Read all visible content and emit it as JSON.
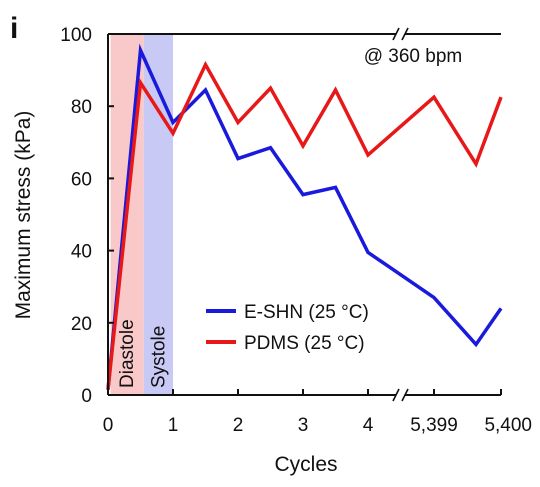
{
  "panel_label": "i",
  "annotation": "@ 360 bpm",
  "chart_data": {
    "type": "line",
    "xlabel": "Cycles",
    "ylabel": "Maximum stress (kPa)",
    "ylim": [
      0,
      100
    ],
    "yticks": [
      0,
      20,
      40,
      60,
      80,
      100
    ],
    "xticks": [
      "0",
      "1",
      "2",
      "3",
      "4",
      "5,399",
      "5,400"
    ],
    "x_axis_break": "between 4 and 5,399",
    "regions": [
      {
        "label": "Diastole",
        "x_start": 0.04,
        "x_end": 0.55,
        "color": "#f9c9c9"
      },
      {
        "label": "Systole",
        "x_start": 0.55,
        "x_end": 1.0,
        "color": "#c9c9f5"
      }
    ],
    "legend_position": "center-right",
    "series": [
      {
        "name": "E-SHN (25 °C)",
        "color": "#1a1adc",
        "points": [
          [
            0,
            1.5
          ],
          [
            0.5,
            95.5
          ],
          [
            1,
            75.5
          ],
          [
            1.5,
            84.5
          ],
          [
            2,
            65.5
          ],
          [
            2.5,
            68.5
          ],
          [
            3,
            55.5
          ],
          [
            3.5,
            57.5
          ],
          [
            4,
            39.5
          ],
          [
            "5,399",
            27
          ],
          [
            "5,399.5",
            14
          ],
          [
            "5,400",
            24
          ]
        ]
      },
      {
        "name": "PDMS (25 °C)",
        "color": "#e81818",
        "points": [
          [
            0,
            1.5
          ],
          [
            0.5,
            86.5
          ],
          [
            1,
            72.5
          ],
          [
            1.5,
            91.5
          ],
          [
            2,
            75.5
          ],
          [
            2.5,
            85
          ],
          [
            3,
            69
          ],
          [
            3.5,
            84.5
          ],
          [
            4,
            66.5
          ],
          [
            "5,399",
            82.5
          ],
          [
            "5,399.5",
            64
          ],
          [
            "5,400",
            82.5
          ]
        ]
      }
    ]
  }
}
